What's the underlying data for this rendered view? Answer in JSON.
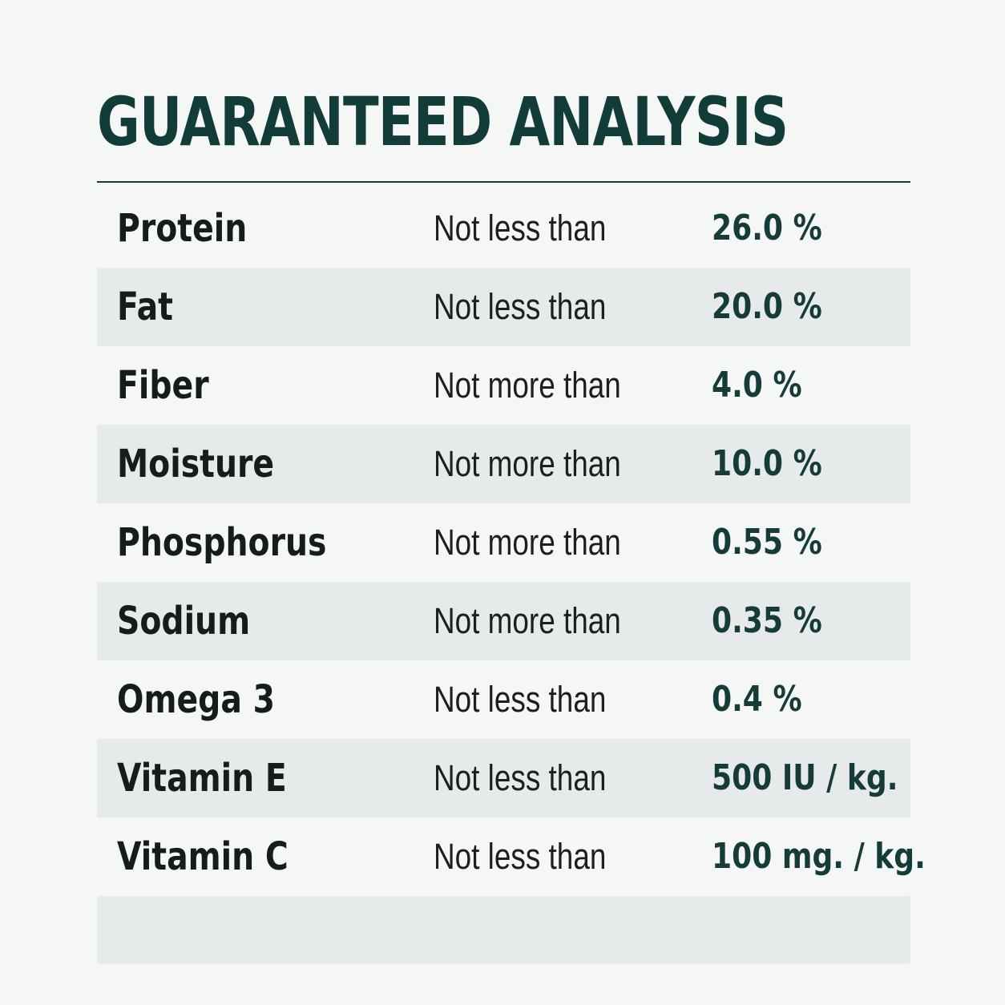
{
  "title": "GUARANTEED ANALYSIS",
  "rows": [
    {
      "nutrient": "Protein",
      "qualifier": "Not less than",
      "amount": "26.0 %"
    },
    {
      "nutrient": "Fat",
      "qualifier": "Not less than",
      "amount": "20.0 %"
    },
    {
      "nutrient": "Fiber",
      "qualifier": "Not more than",
      "amount": "4.0 %"
    },
    {
      "nutrient": "Moisture",
      "qualifier": "Not more than",
      "amount": "10.0 %"
    },
    {
      "nutrient": "Phosphorus",
      "qualifier": "Not more than",
      "amount": "0.55 %"
    },
    {
      "nutrient": "Sodium",
      "qualifier": "Not more than",
      "amount": "0.35 %"
    },
    {
      "nutrient": "Omega 3",
      "qualifier": "Not less than",
      "amount": "0.4 %"
    },
    {
      "nutrient": "Vitamin E",
      "qualifier": "Not less than",
      "amount": "500 IU / kg."
    },
    {
      "nutrient": "Vitamin C",
      "qualifier": "Not less than",
      "amount": "100 mg. / kg."
    }
  ],
  "colors": {
    "title": "#123c38",
    "amount": "#153c38",
    "shaded_row": "#e6eaeb",
    "background": "#f5f6f6"
  }
}
